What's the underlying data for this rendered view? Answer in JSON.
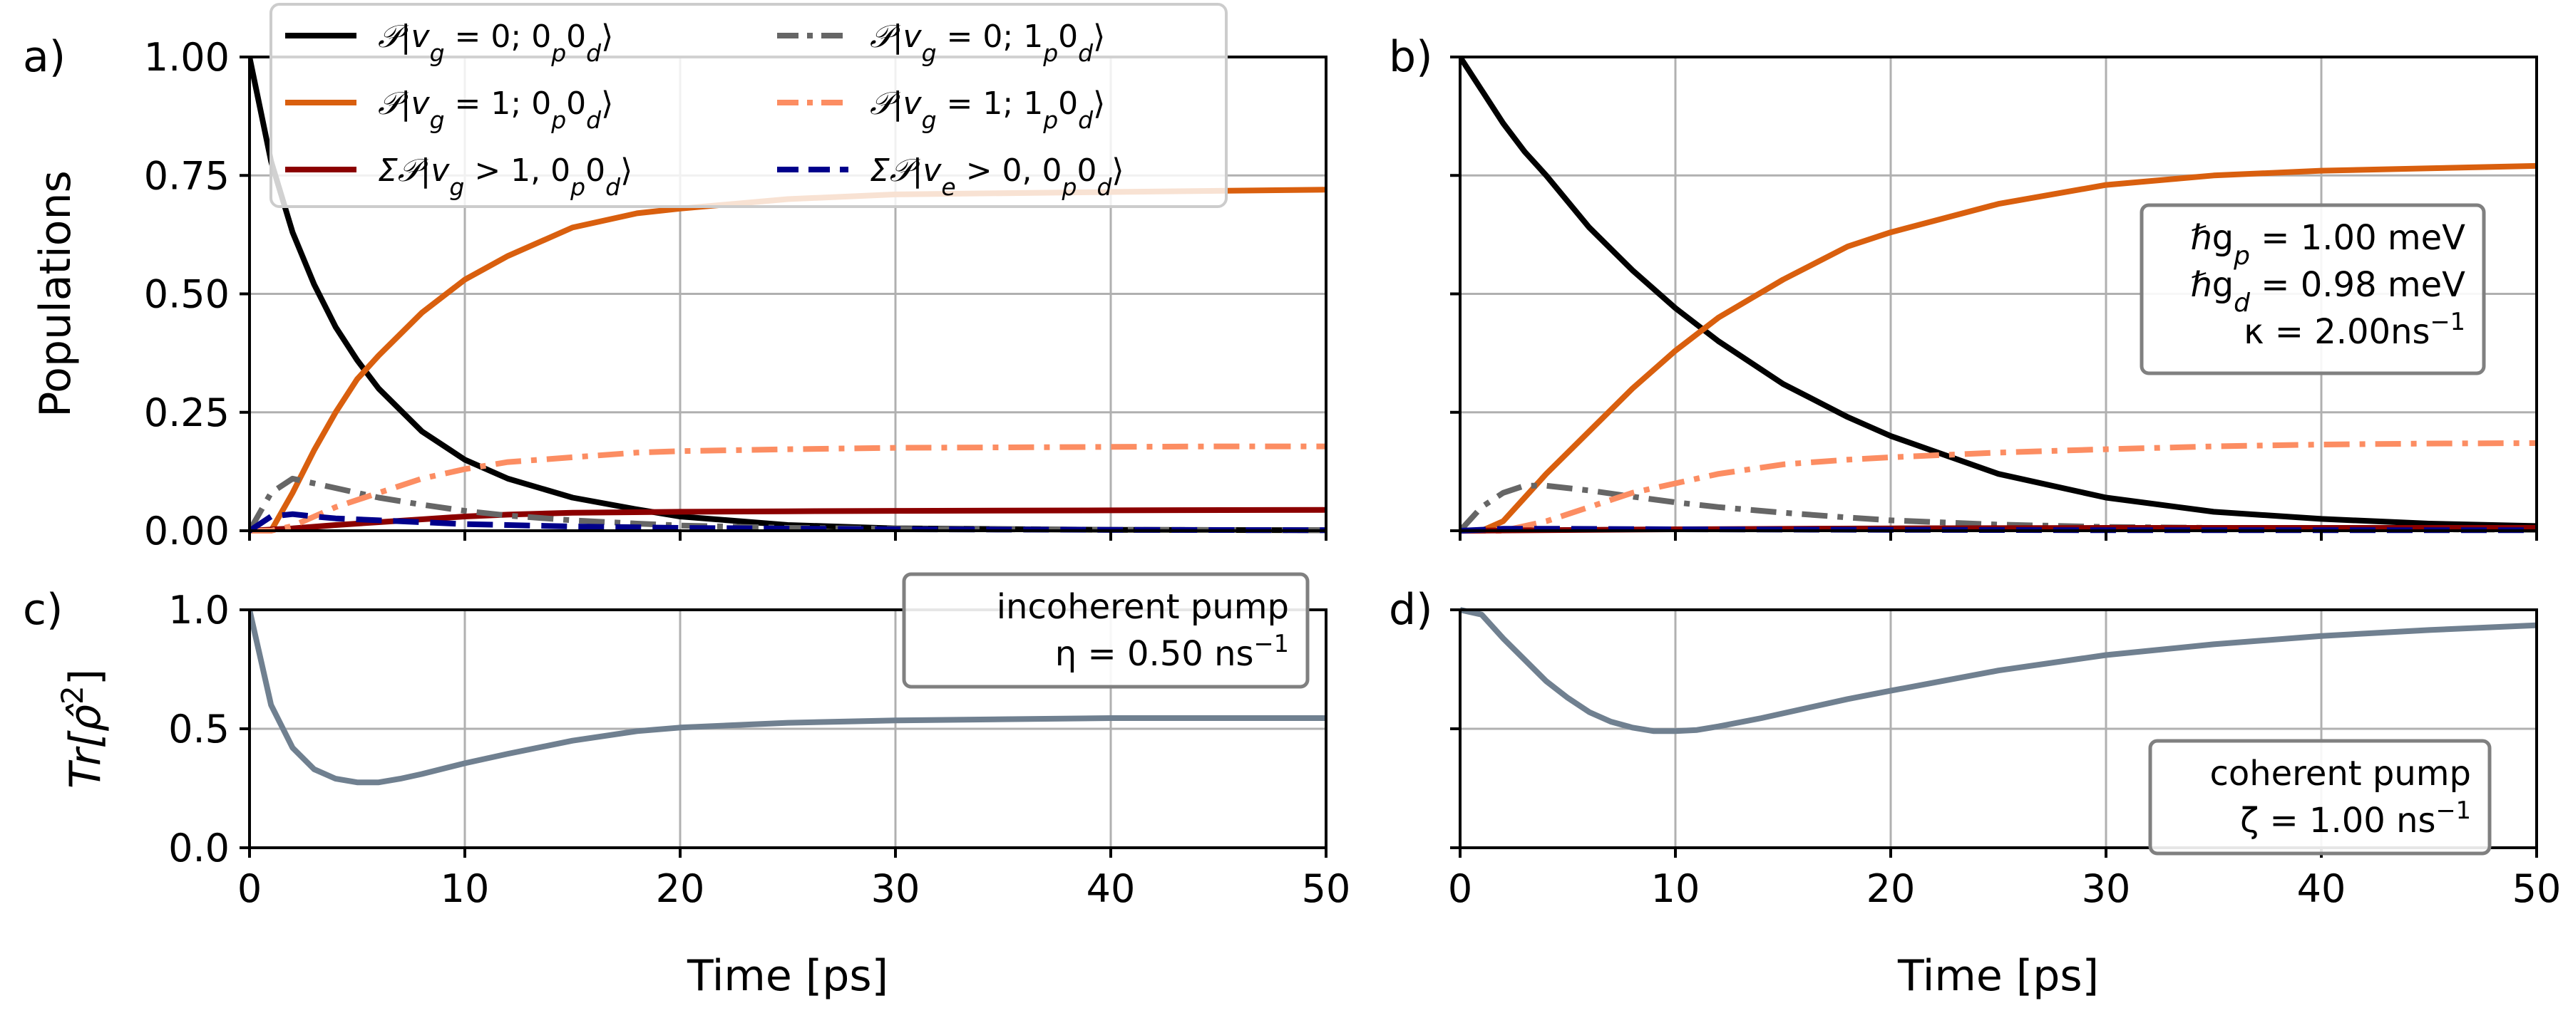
{
  "chart_data": [
    {
      "id": "a",
      "panel_label": "a)",
      "type": "line",
      "ylabel": "Populations",
      "xlabel": "",
      "xlim": [
        0,
        50
      ],
      "ylim": [
        0,
        1
      ],
      "xticks": [
        "0",
        "10",
        "20",
        "30",
        "40",
        "50"
      ],
      "yticks": [
        "0.00",
        "0.25",
        "0.50",
        "0.75",
        "1.00"
      ],
      "legend": {
        "position": "top",
        "columns": 2
      },
      "series": [
        {
          "name": "P|vg=0; 0p0d⟩",
          "label_main": "𝒫|v",
          "label_sub1": "g",
          "label_rest": " = 0; 0",
          "label_sub2": "p",
          "label_mid": "0",
          "label_sub3": "d",
          "label_end": "⟩",
          "color": "#000000",
          "style": "solid",
          "x": [
            0,
            1,
            2,
            3,
            4,
            5,
            6,
            8,
            10,
            12,
            15,
            18,
            20,
            25,
            30,
            40,
            50
          ],
          "y": [
            1.0,
            0.78,
            0.63,
            0.52,
            0.43,
            0.36,
            0.3,
            0.21,
            0.15,
            0.11,
            0.07,
            0.045,
            0.03,
            0.012,
            0.005,
            0.002,
            0.001
          ]
        },
        {
          "name": "P|vg=1; 0p0d⟩",
          "label_main": "𝒫|v",
          "label_sub1": "g",
          "label_rest": " = 1; 0",
          "label_sub2": "p",
          "label_mid": "0",
          "label_sub3": "d",
          "label_end": "⟩",
          "color": "#d95f0e",
          "style": "solid",
          "x": [
            0,
            1,
            2,
            3,
            4,
            5,
            6,
            8,
            10,
            12,
            15,
            18,
            20,
            25,
            30,
            40,
            50
          ],
          "y": [
            0.0,
            0.0,
            0.08,
            0.17,
            0.25,
            0.32,
            0.37,
            0.46,
            0.53,
            0.58,
            0.64,
            0.67,
            0.68,
            0.7,
            0.71,
            0.715,
            0.72
          ]
        },
        {
          "name": "ΣP|vg>1, 0p0d⟩",
          "label_main": "Σ𝒫|v",
          "label_sub1": "g",
          "label_rest": " > 1, 0",
          "label_sub2": "p",
          "label_mid": "0",
          "label_sub3": "d",
          "label_end": "⟩",
          "color": "#8b0000",
          "style": "solid",
          "x": [
            0,
            2,
            4,
            6,
            8,
            10,
            12,
            15,
            20,
            25,
            30,
            40,
            50
          ],
          "y": [
            0.0,
            0.005,
            0.012,
            0.018,
            0.024,
            0.03,
            0.034,
            0.038,
            0.04,
            0.041,
            0.042,
            0.043,
            0.044
          ]
        },
        {
          "name": "P|vg=0; 1p0d⟩",
          "label_main": "𝒫|v",
          "label_sub1": "g",
          "label_rest": " = 0; 1",
          "label_sub2": "p",
          "label_mid": "0",
          "label_sub3": "d",
          "label_end": "⟩",
          "color": "#666666",
          "style": "dashdot",
          "x": [
            0,
            1,
            2,
            3,
            4,
            6,
            8,
            10,
            12,
            15,
            18,
            20,
            25,
            30,
            40,
            50
          ],
          "y": [
            0.0,
            0.08,
            0.11,
            0.1,
            0.09,
            0.07,
            0.055,
            0.042,
            0.032,
            0.022,
            0.015,
            0.011,
            0.006,
            0.004,
            0.002,
            0.001
          ]
        },
        {
          "name": "P|vg=1; 1p0d⟩",
          "label_main": "𝒫|v",
          "label_sub1": "g",
          "label_rest": " = 1; 1",
          "label_sub2": "p",
          "label_mid": "0",
          "label_sub3": "d",
          "label_end": "⟩",
          "color": "#fc8d62",
          "style": "dashdot",
          "x": [
            0,
            1,
            2,
            4,
            6,
            8,
            10,
            12,
            15,
            18,
            20,
            25,
            30,
            35,
            40,
            45,
            50
          ],
          "y": [
            0.0,
            0.0,
            0.01,
            0.05,
            0.08,
            0.11,
            0.13,
            0.145,
            0.155,
            0.165,
            0.168,
            0.172,
            0.175,
            0.176,
            0.177,
            0.178,
            0.178
          ]
        },
        {
          "name": "ΣP|ve>0, 0p0d⟩",
          "label_main": "Σ𝒫|v",
          "label_sub1": "e",
          "label_rest": " > 0, 0",
          "label_sub2": "p",
          "label_mid": "0",
          "label_sub3": "d",
          "label_end": "⟩",
          "color": "#00008b",
          "style": "dashed",
          "x": [
            0,
            1,
            2,
            3,
            4,
            6,
            8,
            10,
            15,
            20,
            30,
            40,
            50
          ],
          "y": [
            0.0,
            0.03,
            0.035,
            0.03,
            0.026,
            0.022,
            0.018,
            0.014,
            0.009,
            0.006,
            0.003,
            0.002,
            0.001
          ]
        }
      ]
    },
    {
      "id": "b",
      "panel_label": "b)",
      "type": "line",
      "ylabel": "",
      "xlabel": "",
      "xlim": [
        0,
        50
      ],
      "ylim": [
        0,
        1
      ],
      "xticks": [
        "0",
        "10",
        "20",
        "30",
        "40",
        "50"
      ],
      "yticks": [],
      "textbox": {
        "lines": [
          {
            "prefix": "ℏg",
            "sub": "p",
            "suffix": " = 1.00 meV"
          },
          {
            "prefix": "ℏg",
            "sub": "d",
            "suffix": " = 0.98 meV"
          },
          {
            "prefix": "κ = 2.00ns",
            "sup": "−1",
            "suffix": ""
          }
        ],
        "position": "right"
      },
      "series": [
        {
          "name": "P|vg=0; 0p0d⟩",
          "color": "#000000",
          "style": "solid",
          "x": [
            0,
            1,
            2,
            3,
            4,
            6,
            8,
            10,
            12,
            15,
            18,
            20,
            25,
            30,
            35,
            40,
            45,
            50
          ],
          "y": [
            1.0,
            0.93,
            0.86,
            0.8,
            0.75,
            0.64,
            0.55,
            0.47,
            0.4,
            0.31,
            0.24,
            0.2,
            0.12,
            0.07,
            0.04,
            0.025,
            0.015,
            0.01
          ]
        },
        {
          "name": "P|vg=1; 0p0d⟩",
          "color": "#d95f0e",
          "style": "solid",
          "x": [
            0,
            1,
            2,
            3,
            4,
            6,
            8,
            10,
            12,
            15,
            18,
            20,
            25,
            30,
            35,
            40,
            45,
            50
          ],
          "y": [
            0.0,
            0.0,
            0.02,
            0.07,
            0.12,
            0.21,
            0.3,
            0.38,
            0.45,
            0.53,
            0.6,
            0.63,
            0.69,
            0.73,
            0.75,
            0.76,
            0.765,
            0.77
          ]
        },
        {
          "name": "P|vg=0; 1p0d⟩",
          "color": "#666666",
          "style": "dashdot",
          "x": [
            0,
            1,
            2,
            3,
            4,
            6,
            8,
            10,
            12,
            15,
            18,
            20,
            25,
            30,
            40,
            50
          ],
          "y": [
            0.0,
            0.05,
            0.08,
            0.095,
            0.095,
            0.085,
            0.072,
            0.06,
            0.05,
            0.038,
            0.028,
            0.022,
            0.013,
            0.008,
            0.004,
            0.002
          ]
        },
        {
          "name": "P|vg=1; 1p0d⟩",
          "color": "#fc8d62",
          "style": "dashdot",
          "x": [
            0,
            2,
            3,
            4,
            6,
            8,
            10,
            12,
            15,
            18,
            20,
            25,
            30,
            35,
            40,
            45,
            50
          ],
          "y": [
            0.0,
            0.0,
            0.01,
            0.02,
            0.05,
            0.08,
            0.1,
            0.12,
            0.14,
            0.15,
            0.155,
            0.165,
            0.172,
            0.178,
            0.182,
            0.184,
            0.185
          ]
        },
        {
          "name": "ΣP|vg>1, 0p0d⟩",
          "color": "#8b0000",
          "style": "solid",
          "x": [
            0,
            10,
            20,
            30,
            40,
            50
          ],
          "y": [
            0.0,
            0.003,
            0.005,
            0.006,
            0.006,
            0.006
          ]
        },
        {
          "name": "ΣP|ve>0, 0p0d⟩",
          "color": "#00008b",
          "style": "dashed",
          "x": [
            0,
            2,
            5,
            10,
            20,
            30,
            40,
            50
          ],
          "y": [
            0.0,
            0.004,
            0.004,
            0.003,
            0.002,
            0.001,
            0.001,
            0.001
          ]
        }
      ]
    },
    {
      "id": "c",
      "panel_label": "c)",
      "type": "line",
      "ylabel": "Tr[ρ̂²]",
      "ylabel_base": "Tr[ρ̂",
      "ylabel_sup": "2",
      "ylabel_end": "]",
      "xlabel": "Time [ps]",
      "xlim": [
        0,
        50
      ],
      "ylim": [
        0,
        1
      ],
      "xticks": [
        "0",
        "10",
        "20",
        "30",
        "40",
        "50"
      ],
      "yticks": [
        "0.0",
        "0.5",
        "1.0"
      ],
      "textbox": {
        "lines": [
          {
            "prefix": "incoherent pump",
            "suffix": ""
          },
          {
            "prefix": "η = 0.50 ns",
            "sup": "−1",
            "suffix": ""
          }
        ],
        "position": "top-right"
      },
      "series": [
        {
          "name": "purity",
          "color": "#708090",
          "style": "solid",
          "x": [
            0,
            1,
            2,
            3,
            4,
            5,
            6,
            7,
            8,
            10,
            12,
            15,
            18,
            20,
            25,
            30,
            35,
            40,
            45,
            50
          ],
          "y": [
            1.0,
            0.6,
            0.42,
            0.33,
            0.29,
            0.275,
            0.275,
            0.29,
            0.31,
            0.355,
            0.395,
            0.45,
            0.49,
            0.505,
            0.525,
            0.535,
            0.54,
            0.545,
            0.545,
            0.545
          ]
        }
      ]
    },
    {
      "id": "d",
      "panel_label": "d)",
      "type": "line",
      "ylabel": "",
      "xlabel": "Time [ps]",
      "xlim": [
        0,
        50
      ],
      "ylim": [
        0,
        1
      ],
      "xticks": [
        "0",
        "10",
        "20",
        "30",
        "40",
        "50"
      ],
      "yticks": [],
      "textbox": {
        "lines": [
          {
            "prefix": "coherent pump",
            "suffix": ""
          },
          {
            "prefix": "ζ = 1.00 ns",
            "sup": "−1",
            "suffix": ""
          }
        ],
        "position": "bottom-right"
      },
      "series": [
        {
          "name": "purity",
          "color": "#708090",
          "style": "solid",
          "x": [
            0,
            1,
            2,
            3,
            4,
            5,
            6,
            7,
            8,
            9,
            10,
            11,
            12,
            14,
            16,
            18,
            20,
            25,
            30,
            35,
            40,
            45,
            50
          ],
          "y": [
            1.0,
            0.98,
            0.88,
            0.79,
            0.7,
            0.63,
            0.57,
            0.53,
            0.505,
            0.49,
            0.49,
            0.495,
            0.51,
            0.545,
            0.585,
            0.625,
            0.66,
            0.745,
            0.81,
            0.855,
            0.89,
            0.915,
            0.935
          ]
        }
      ]
    }
  ]
}
